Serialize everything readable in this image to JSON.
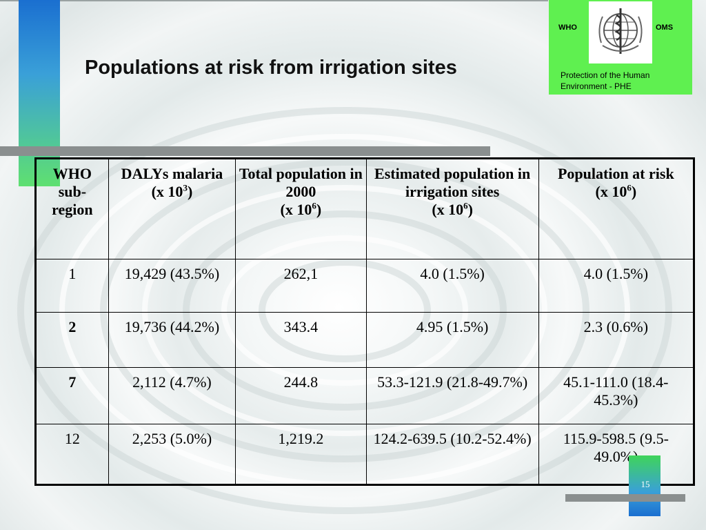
{
  "title": "Populations at risk from irrigation sites",
  "logo": {
    "left_label": "WHO",
    "right_label": "OMS",
    "subtitle": "Protection of  the Human Environment  -  PHE",
    "colors": {
      "panel": "#5ff050"
    }
  },
  "page_number": "15",
  "table": {
    "headers": [
      {
        "main": "WHO sub-region",
        "unit": "",
        "unit_exp": ""
      },
      {
        "main": "DALYs malaria",
        "unit": "(x 10",
        "unit_exp": "3",
        "unit_end": ")"
      },
      {
        "main": "Total population in 2000",
        "unit": "(x 10",
        "unit_exp": "6",
        "unit_end": ")"
      },
      {
        "main": "Estimated population in irrigation sites",
        "unit": "(x 10",
        "unit_exp": "6",
        "unit_end": ")"
      },
      {
        "main": "Population at risk",
        "unit": "(x 10",
        "unit_exp": "6",
        "unit_end": ")"
      }
    ],
    "rows": [
      {
        "region": "1",
        "bold": false,
        "dalys": "19,429 (43.5%)",
        "total": "262,1",
        "estimated": "4.0 (1.5%)",
        "risk": "4.0 (1.5%)"
      },
      {
        "region": "2",
        "bold": true,
        "dalys": "19,736 (44.2%)",
        "total": "343.4",
        "estimated": "4.95 (1.5%)",
        "risk": "2.3 (0.6%)"
      },
      {
        "region": "7",
        "bold": true,
        "dalys": "2,112 (4.7%)",
        "total": "244.8",
        "estimated": "53.3-121.9 (21.8-49.7%)",
        "risk": "45.1-111.0 (18.4-45.3%)"
      },
      {
        "region": "12",
        "bold": false,
        "dalys": "2,253 (5.0%)",
        "total": "1,219.2",
        "estimated": "124.2-639.5 (10.2-52.4%)",
        "risk": "115.9-598.5 (9.5-49.0%)"
      }
    ]
  }
}
